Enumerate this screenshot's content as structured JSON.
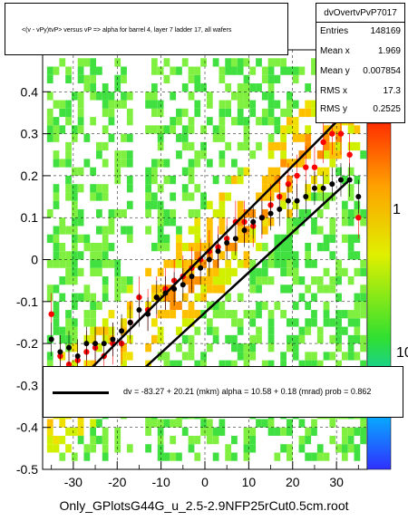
{
  "title": "<(v - vPy)tvP> versus   vP => alpha for barrel 4, layer 7 ladder 17, all wafers",
  "stats": {
    "name": "dvOvertvPvP7017",
    "rows": [
      {
        "key": "Entries",
        "value": "148169"
      },
      {
        "key": "Mean x",
        "value": "1.969"
      },
      {
        "key": "Mean y",
        "value": "0.007854"
      },
      {
        "key": "RMS x",
        "value": "17.3"
      },
      {
        "key": "RMS y",
        "value": "0.2525"
      }
    ]
  },
  "fit_text": "dv =  -83.27 +  20.21 (mkm) alpha =    10.58 +  0.18 (mrad) prob = 0.862",
  "footer": "Only_GPlotsG44G_u_2.5-2.9NFP25rCut0.5cm.root",
  "chart_data": {
    "type": "scatter",
    "title": "<(v - vPy)tvP> versus   vP => alpha for barrel 4, layer 7 ladder 17, all wafers",
    "xlabel": "",
    "ylabel": "",
    "xlim": [
      -37,
      37
    ],
    "ylim": [
      -0.5,
      0.5
    ],
    "x_ticks": [
      -30,
      -20,
      -10,
      0,
      10,
      20,
      30
    ],
    "y_ticks": [
      -0.5,
      -0.4,
      -0.3,
      -0.2,
      -0.1,
      0,
      0.1,
      0.2,
      0.3,
      0.4
    ],
    "z_scale": "log",
    "z_ticks": [
      "1",
      "10"
    ],
    "grid": "dashed horizontal and vertical",
    "series": [
      {
        "name": "black profile points",
        "x": [
          -35,
          -33,
          -31,
          -29,
          -27,
          -25,
          -23,
          -21,
          -19,
          -17,
          -15,
          -13,
          -11,
          -9,
          -7,
          -5,
          -3,
          -1,
          1,
          3,
          5,
          7,
          9,
          11,
          13,
          15,
          17,
          19,
          21,
          23,
          25,
          27,
          29,
          31,
          33,
          35
        ],
        "y": [
          -0.19,
          -0.22,
          -0.21,
          -0.23,
          -0.2,
          -0.2,
          -0.2,
          -0.19,
          -0.17,
          -0.15,
          -0.12,
          -0.13,
          -0.09,
          -0.08,
          -0.07,
          -0.06,
          -0.04,
          -0.02,
          0.0,
          0.02,
          0.04,
          0.05,
          0.07,
          0.09,
          0.1,
          0.11,
          0.12,
          0.14,
          0.14,
          0.15,
          0.17,
          0.17,
          0.18,
          0.19,
          0.19,
          0.15
        ]
      },
      {
        "name": "red profile points",
        "x": [
          -35,
          -33,
          -31,
          -29,
          -27,
          -25,
          -23,
          -21,
          -19,
          -17,
          -15,
          -13,
          -11,
          -9,
          -7,
          -5,
          -3,
          -1,
          1,
          3,
          5,
          7,
          9,
          11,
          13,
          15,
          17,
          19,
          21,
          23,
          25,
          27,
          29,
          31,
          33,
          35
        ],
        "y": [
          -0.13,
          -0.23,
          -0.25,
          -0.24,
          -0.22,
          -0.21,
          -0.23,
          -0.2,
          -0.2,
          -0.15,
          -0.09,
          -0.12,
          -0.09,
          -0.07,
          -0.05,
          -0.04,
          -0.02,
          0.0,
          0.02,
          0.03,
          0.05,
          0.09,
          0.09,
          0.08,
          0.1,
          0.13,
          0.15,
          0.18,
          0.2,
          0.22,
          0.22,
          0.28,
          0.3,
          0.3,
          0.25,
          0.1
        ]
      },
      {
        "name": "fit line",
        "x": [
          -26,
          33
        ],
        "y": [
          -0.26,
          0.36
        ]
      },
      {
        "name": "lower line",
        "x": [
          -16,
          33
        ],
        "y": [
          -0.28,
          0.19
        ]
      }
    ]
  },
  "colors": {
    "fit": "#000000",
    "red_points": "#ff0000",
    "black_points": "#000000"
  }
}
